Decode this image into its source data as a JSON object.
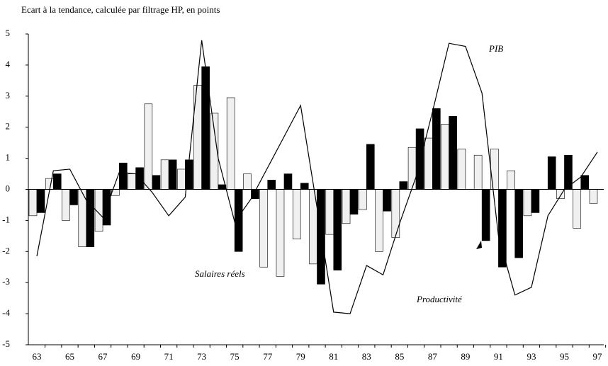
{
  "chart_data": {
    "type": "bar",
    "title": "Ecart à la tendance, calculée par filtrage HP, en points",
    "categories": [
      "63",
      null,
      "65",
      null,
      "67",
      null,
      "69",
      null,
      "71",
      null,
      "73",
      null,
      "75",
      null,
      "77",
      null,
      "79",
      null,
      "81",
      null,
      "83",
      null,
      "85",
      null,
      "87",
      null,
      "89",
      null,
      "91",
      null,
      "93",
      null,
      "95",
      null,
      "97"
    ],
    "series": [
      {
        "name": "Salaires réels",
        "type": "bar",
        "color": "#f0f0f0",
        "values": [
          -0.85,
          0.35,
          -1.0,
          -1.85,
          -1.35,
          -0.2,
          0.5,
          2.75,
          0.95,
          0.65,
          3.35,
          2.45,
          2.95,
          0.5,
          -2.5,
          -2.8,
          -1.6,
          -2.4,
          -1.45,
          -1.1,
          -0.65,
          -2.0,
          -1.55,
          1.35,
          1.65,
          2.1,
          1.3,
          1.1,
          1.3,
          0.6,
          -0.85,
          0,
          -0.3,
          -1.25,
          -0.45
        ]
      },
      {
        "name": "Productivité",
        "type": "bar",
        "color": "#000000",
        "values": [
          -0.75,
          0.5,
          -0.5,
          -1.85,
          -1.15,
          0.85,
          0.7,
          0.45,
          0.95,
          0.95,
          3.95,
          0.15,
          -2.0,
          -0.3,
          0.3,
          0.5,
          0.2,
          -3.05,
          -2.6,
          -0.8,
          1.45,
          -0.7,
          0.25,
          1.95,
          2.6,
          2.35,
          0,
          -1.65,
          -2.5,
          -2.2,
          -0.75,
          1.05,
          1.1,
          0.45,
          0
        ]
      },
      {
        "name": "PIB",
        "type": "line",
        "color": "#000000",
        "values": [
          -2.15,
          0.6,
          0.65,
          -0.35,
          -0.9,
          0.55,
          0.5,
          -0.1,
          -0.85,
          -0.25,
          4.8,
          1.0,
          -1.05,
          -0.3,
          0.7,
          1.7,
          2.7,
          -0.6,
          -3.95,
          -4.0,
          -2.45,
          -2.75,
          -1.1,
          0.4,
          2.5,
          4.7,
          4.6,
          3.1,
          -1.5,
          -3.4,
          -3.15,
          -0.85,
          0.0,
          0.4,
          1.2
        ]
      }
    ],
    "ylim": [
      -5,
      5
    ],
    "yticks": [
      -5,
      -4,
      -3,
      -2,
      -1,
      0,
      1,
      2,
      3,
      4,
      5
    ],
    "grid": false
  }
}
